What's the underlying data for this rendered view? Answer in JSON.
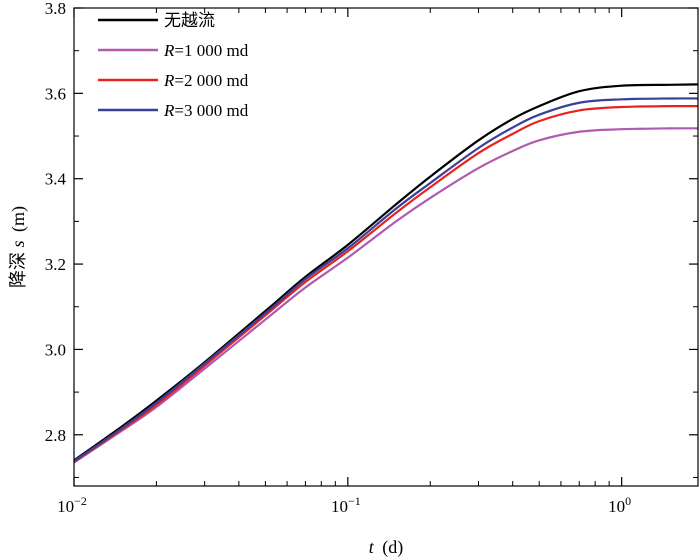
{
  "chart_data": {
    "type": "line",
    "xscale": "log",
    "xlim": [
      0.01,
      1.9
    ],
    "ylim": [
      2.68,
      3.8
    ],
    "xlabel": {
      "var": "t",
      "unit": "(d)"
    },
    "ylabel": {
      "text": "降深",
      "var": "s",
      "unit": "(m)"
    },
    "x_ticks": [
      {
        "value": 0.01,
        "base": "10",
        "exp": "−2"
      },
      {
        "value": 0.1,
        "base": "10",
        "exp": "−1"
      },
      {
        "value": 1,
        "base": "10",
        "exp": "0"
      }
    ],
    "y_ticks": [
      {
        "value": 2.8,
        "label": "2.8"
      },
      {
        "value": 3.0,
        "label": "3.0"
      },
      {
        "value": 3.2,
        "label": "3.2"
      },
      {
        "value": 3.4,
        "label": "3.4"
      },
      {
        "value": 3.6,
        "label": "3.6"
      },
      {
        "value": 3.8,
        "label": "3.8"
      }
    ],
    "legend_position": "top-left",
    "series": [
      {
        "name": "无越流",
        "legend": {
          "prefix": "无越流",
          "var": "",
          "rest": ""
        },
        "color": "#000000",
        "x": [
          0.01,
          0.015,
          0.02,
          0.03,
          0.05,
          0.07,
          0.1,
          0.15,
          0.2,
          0.3,
          0.4,
          0.5,
          0.7,
          1.0,
          1.5,
          1.9
        ],
        "y": [
          2.74,
          2.82,
          2.88,
          2.97,
          3.09,
          3.17,
          3.245,
          3.34,
          3.405,
          3.49,
          3.54,
          3.57,
          3.605,
          3.618,
          3.62,
          3.621
        ]
      },
      {
        "name": "R=1 000 md",
        "legend": {
          "prefix": "",
          "var": "R",
          "rest": "=1 000  md"
        },
        "color": "#b05ab0",
        "x": [
          0.01,
          0.015,
          0.02,
          0.03,
          0.05,
          0.07,
          0.1,
          0.15,
          0.2,
          0.3,
          0.4,
          0.5,
          0.7,
          1.0,
          1.5,
          1.9
        ],
        "y": [
          2.735,
          2.81,
          2.865,
          2.955,
          3.07,
          3.145,
          3.215,
          3.3,
          3.355,
          3.425,
          3.465,
          3.49,
          3.51,
          3.516,
          3.518,
          3.518
        ]
      },
      {
        "name": "R=2 000 md",
        "legend": {
          "prefix": "",
          "var": "R",
          "rest": "=2 000  md"
        },
        "color": "#e8231e",
        "x": [
          0.01,
          0.015,
          0.02,
          0.03,
          0.05,
          0.07,
          0.1,
          0.15,
          0.2,
          0.3,
          0.4,
          0.5,
          0.7,
          1.0,
          1.5,
          1.9
        ],
        "y": [
          2.737,
          2.813,
          2.87,
          2.962,
          3.08,
          3.158,
          3.23,
          3.32,
          3.38,
          3.46,
          3.505,
          3.535,
          3.56,
          3.568,
          3.57,
          3.57
        ]
      },
      {
        "name": "R=3 000 md",
        "legend": {
          "prefix": "",
          "var": "R",
          "rest": "=3 000  md"
        },
        "color": "#3a3f98",
        "x": [
          0.01,
          0.015,
          0.02,
          0.03,
          0.05,
          0.07,
          0.1,
          0.15,
          0.2,
          0.3,
          0.4,
          0.5,
          0.7,
          1.0,
          1.5,
          1.9
        ],
        "y": [
          2.738,
          2.816,
          2.875,
          2.967,
          3.085,
          3.165,
          3.237,
          3.33,
          3.39,
          3.472,
          3.52,
          3.55,
          3.578,
          3.586,
          3.588,
          3.588
        ]
      }
    ]
  }
}
